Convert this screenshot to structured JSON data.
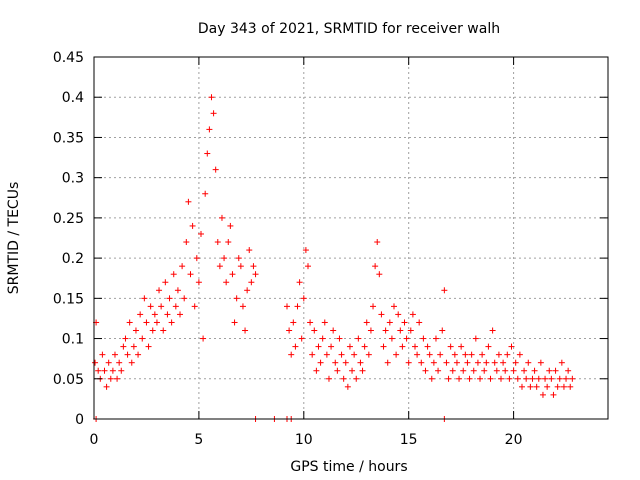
{
  "chart_data": {
    "type": "scatter",
    "title": "Day 343 of 2021, SRMTID for receiver walh",
    "xlabel": "GPS time / hours",
    "ylabel": "SRMTID / TECUs",
    "xlim": [
      0,
      24.5
    ],
    "ylim": [
      0,
      0.45
    ],
    "xticks": [
      0,
      5,
      10,
      15,
      20
    ],
    "yticks": [
      0,
      0.05,
      0.1,
      0.15,
      0.2,
      0.25,
      0.3,
      0.35,
      0.4,
      0.45
    ],
    "ytick_labels": [
      "0",
      "0.05",
      "0.1",
      "0.15",
      "0.2",
      "0.25",
      "0.3",
      "0.35",
      "0.4",
      "0.45"
    ],
    "grid": true,
    "marker": "+",
    "color": "#ff0000",
    "series": [
      {
        "name": "SRMTID",
        "x": [
          0.05,
          0.1,
          0.2,
          0.3,
          0.4,
          0.5,
          0.6,
          0.7,
          0.8,
          0.9,
          1.0,
          1.1,
          1.2,
          1.3,
          1.4,
          1.5,
          1.6,
          1.7,
          1.8,
          1.9,
          2.0,
          2.1,
          2.2,
          2.3,
          2.4,
          2.5,
          2.6,
          2.7,
          2.8,
          2.9,
          3.0,
          3.1,
          3.2,
          3.3,
          3.4,
          3.5,
          3.6,
          3.7,
          3.8,
          3.9,
          4.0,
          4.1,
          4.2,
          4.3,
          4.4,
          4.5,
          4.6,
          4.7,
          4.8,
          4.9,
          5.0,
          5.1,
          5.2,
          5.3,
          5.4,
          5.5,
          5.6,
          5.7,
          5.8,
          5.9,
          6.0,
          6.1,
          6.2,
          6.3,
          6.4,
          6.5,
          6.6,
          6.7,
          6.8,
          6.9,
          7.0,
          7.1,
          7.2,
          7.3,
          7.4,
          7.5,
          7.6,
          7.7,
          9.2,
          9.3,
          9.4,
          9.5,
          9.6,
          9.7,
          9.8,
          9.9,
          10.0,
          10.1,
          10.2,
          10.3,
          10.4,
          10.5,
          10.6,
          10.7,
          10.8,
          10.9,
          11.0,
          11.1,
          11.2,
          11.3,
          11.4,
          11.5,
          11.6,
          11.7,
          11.8,
          11.9,
          12.0,
          12.1,
          12.2,
          12.3,
          12.4,
          12.5,
          12.6,
          12.7,
          12.8,
          12.9,
          13.0,
          13.1,
          13.2,
          13.3,
          13.4,
          13.5,
          13.6,
          13.7,
          13.8,
          13.9,
          14.0,
          14.1,
          14.2,
          14.3,
          14.4,
          14.5,
          14.6,
          14.7,
          14.8,
          14.9,
          15.0,
          15.1,
          15.2,
          15.3,
          15.4,
          15.5,
          15.6,
          15.7,
          15.8,
          15.9,
          16.0,
          16.1,
          16.2,
          16.3,
          16.4,
          16.5,
          16.6,
          16.7,
          16.8,
          16.9,
          17.0,
          17.1,
          17.2,
          17.3,
          17.4,
          17.5,
          17.6,
          17.7,
          17.8,
          17.9,
          18.0,
          18.1,
          18.2,
          18.3,
          18.4,
          18.5,
          18.6,
          18.7,
          18.8,
          18.9,
          19.0,
          19.1,
          19.2,
          19.3,
          19.4,
          19.5,
          19.6,
          19.7,
          19.8,
          19.9,
          20.0,
          20.1,
          20.2,
          20.3,
          20.4,
          20.5,
          20.6,
          20.7,
          20.8,
          20.9,
          21.0,
          21.1,
          21.2,
          21.3,
          21.4,
          21.5,
          21.6,
          21.7,
          21.8,
          21.9,
          22.0,
          22.1,
          22.2,
          22.3,
          22.4,
          22.5,
          22.6,
          22.7,
          22.8,
          0.1,
          7.7,
          8.6,
          9.2,
          9.4,
          16.7
        ],
        "y": [
          0.07,
          0.12,
          0.06,
          0.05,
          0.08,
          0.06,
          0.04,
          0.07,
          0.05,
          0.06,
          0.08,
          0.05,
          0.07,
          0.06,
          0.09,
          0.1,
          0.08,
          0.12,
          0.07,
          0.09,
          0.11,
          0.08,
          0.13,
          0.1,
          0.15,
          0.12,
          0.09,
          0.14,
          0.11,
          0.13,
          0.12,
          0.16,
          0.14,
          0.11,
          0.17,
          0.13,
          0.15,
          0.12,
          0.18,
          0.14,
          0.16,
          0.13,
          0.19,
          0.15,
          0.22,
          0.27,
          0.18,
          0.24,
          0.14,
          0.2,
          0.17,
          0.23,
          0.1,
          0.28,
          0.33,
          0.36,
          0.4,
          0.38,
          0.31,
          0.22,
          0.19,
          0.25,
          0.2,
          0.17,
          0.22,
          0.24,
          0.18,
          0.12,
          0.15,
          0.2,
          0.19,
          0.14,
          0.11,
          0.16,
          0.21,
          0.17,
          0.19,
          0.18,
          0.14,
          0.11,
          0.08,
          0.12,
          0.09,
          0.14,
          0.17,
          0.1,
          0.15,
          0.21,
          0.19,
          0.12,
          0.08,
          0.11,
          0.06,
          0.09,
          0.07,
          0.1,
          0.12,
          0.08,
          0.05,
          0.09,
          0.11,
          0.07,
          0.06,
          0.1,
          0.08,
          0.05,
          0.07,
          0.04,
          0.09,
          0.06,
          0.08,
          0.05,
          0.1,
          0.07,
          0.06,
          0.09,
          0.12,
          0.08,
          0.11,
          0.14,
          0.19,
          0.22,
          0.18,
          0.13,
          0.09,
          0.11,
          0.07,
          0.12,
          0.1,
          0.14,
          0.08,
          0.13,
          0.11,
          0.09,
          0.12,
          0.1,
          0.07,
          0.11,
          0.13,
          0.09,
          0.08,
          0.12,
          0.07,
          0.1,
          0.06,
          0.09,
          0.08,
          0.05,
          0.07,
          0.1,
          0.06,
          0.08,
          0.11,
          0.16,
          0.07,
          0.05,
          0.09,
          0.06,
          0.08,
          0.07,
          0.05,
          0.09,
          0.06,
          0.08,
          0.07,
          0.05,
          0.08,
          0.06,
          0.1,
          0.07,
          0.05,
          0.08,
          0.06,
          0.07,
          0.09,
          0.05,
          0.11,
          0.07,
          0.06,
          0.08,
          0.05,
          0.07,
          0.06,
          0.08,
          0.05,
          0.09,
          0.06,
          0.07,
          0.05,
          0.08,
          0.04,
          0.06,
          0.05,
          0.07,
          0.04,
          0.05,
          0.06,
          0.04,
          0.05,
          0.07,
          0.03,
          0.05,
          0.04,
          0.06,
          0.05,
          0.03,
          0.06,
          0.04,
          0.05,
          0.07,
          0.04,
          0.05,
          0.06,
          0.04,
          0.05,
          0,
          0,
          0,
          0,
          0,
          0
        ]
      }
    ]
  }
}
